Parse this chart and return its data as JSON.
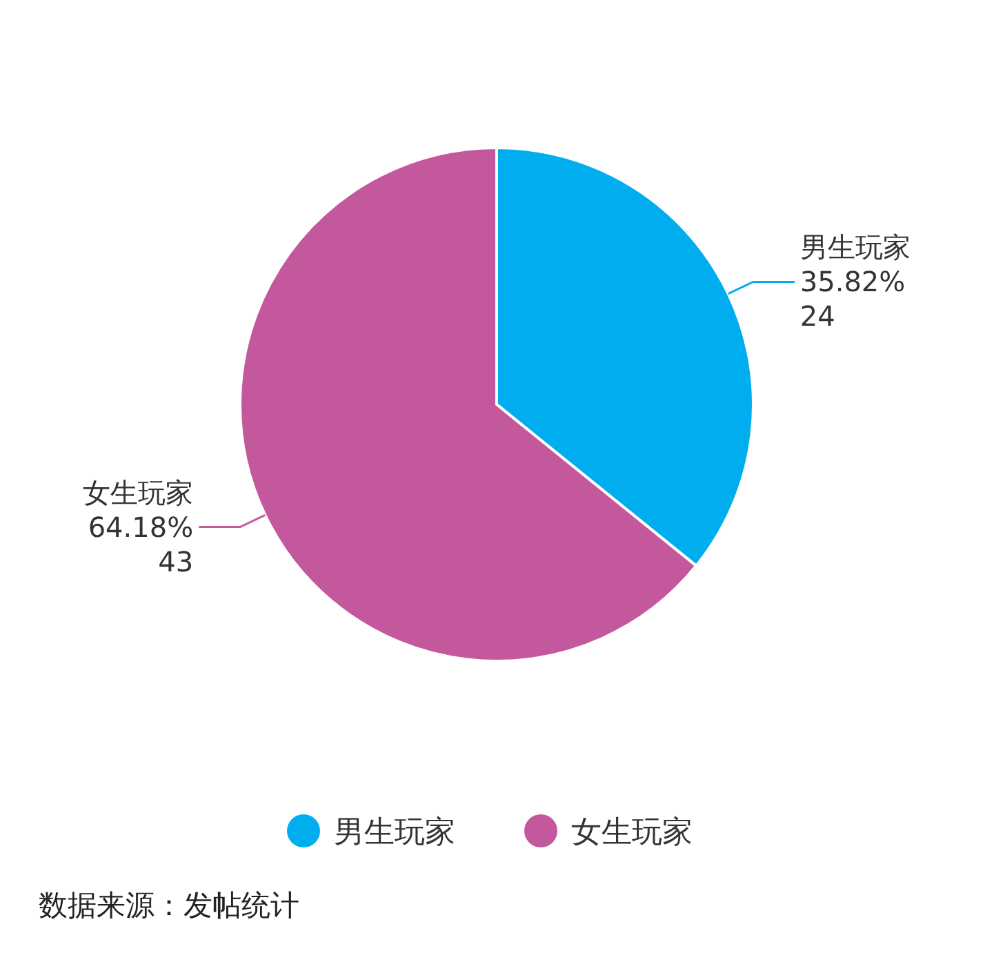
{
  "chart_data": {
    "type": "pie",
    "categories": [
      "男生玩家",
      "女生玩家"
    ],
    "values": [
      35.82,
      64.18
    ],
    "value_labels": [
      "35.82%\n24",
      "64.18%\n43"
    ],
    "colors": [
      "#00adef",
      "#c4589d"
    ],
    "legend": "bottom",
    "annotations": [
      "数据来源：发帖统计"
    ]
  }
}
